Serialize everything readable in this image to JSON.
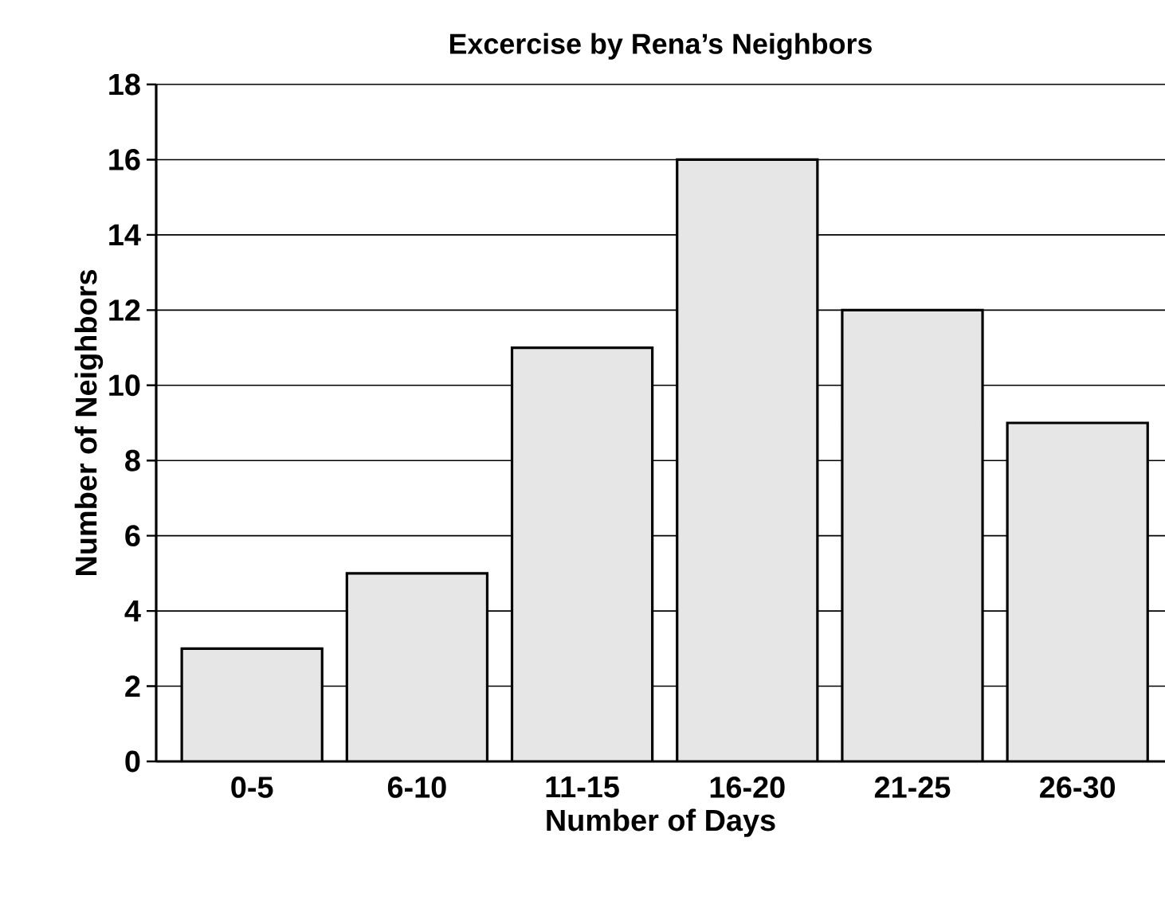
{
  "chart_data": {
    "type": "bar",
    "title": "Excercise by Rena’s Neighbors",
    "xlabel": "Number of Days",
    "ylabel": "Number of Neighbors",
    "categories": [
      "0-5",
      "6-10",
      "11-15",
      "16-20",
      "21-25",
      "26-30"
    ],
    "values": [
      3,
      5,
      11,
      16,
      12,
      9
    ],
    "color": "#e6e6e6",
    "ylim": [
      0,
      18
    ],
    "yticks": [
      0,
      2,
      4,
      6,
      8,
      10,
      12,
      14,
      16,
      18
    ],
    "grid": "y"
  }
}
